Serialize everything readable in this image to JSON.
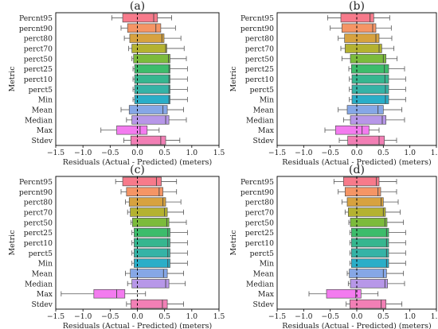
{
  "figure": {
    "xlabel": "Residuals (Actual - Predicted) (meters)",
    "ylabel": "Metric"
  },
  "chart_data": [
    {
      "type": "box",
      "panel_label": "(a)",
      "xlabel": "Residuals (Actual - Predicted) (meters)",
      "ylabel": "Metric",
      "xlim": [
        -1.5,
        1.5
      ],
      "xticks": [
        -1.5,
        -1.0,
        -0.5,
        0.0,
        0.5,
        1.0,
        1.5
      ],
      "xtick_labels": [
        "−1.5",
        "−1.0",
        "−0.5",
        "0.0",
        "0.5",
        "1.0",
        "1.5"
      ],
      "zero_line": 0,
      "categories": [
        "Percnt95",
        "percnt90",
        "perct80",
        "perct70",
        "perct50",
        "perct25",
        "perct10",
        "perct5",
        "Min",
        "Mean",
        "Median",
        "Max",
        "Stdev"
      ],
      "boxes": [
        {
          "color": "#f77a8b",
          "whisker_low": -0.47,
          "q1": -0.27,
          "median": 0.3,
          "q3": 0.37,
          "whisker_high": 0.63
        },
        {
          "color": "#f59565",
          "whisker_low": -0.3,
          "q1": -0.18,
          "median": 0.34,
          "q3": 0.43,
          "whisker_high": 0.7
        },
        {
          "color": "#d7a23f",
          "whisker_low": -0.24,
          "q1": -0.14,
          "median": 0.45,
          "q3": 0.49,
          "whisker_high": 0.8
        },
        {
          "color": "#b4b231",
          "whisker_low": -0.16,
          "q1": -0.1,
          "median": 0.52,
          "q3": 0.54,
          "whisker_high": 0.86
        },
        {
          "color": "#7cbb3c",
          "whisker_low": -0.1,
          "q1": -0.07,
          "median": 0.57,
          "q3": 0.6,
          "whisker_high": 0.9
        },
        {
          "color": "#3dbc6b",
          "whisker_low": -0.08,
          "q1": -0.05,
          "median": 0.58,
          "q3": 0.6,
          "whisker_high": 0.92
        },
        {
          "color": "#36b68f",
          "whisker_low": -0.08,
          "q1": -0.05,
          "median": 0.58,
          "q3": 0.6,
          "whisker_high": 0.92
        },
        {
          "color": "#35b3a6",
          "whisker_low": -0.08,
          "q1": -0.05,
          "median": 0.58,
          "q3": 0.6,
          "whisker_high": 0.92
        },
        {
          "color": "#2aaec8",
          "whisker_low": -0.08,
          "q1": -0.05,
          "median": 0.58,
          "q3": 0.6,
          "whisker_high": 0.92
        },
        {
          "color": "#86a7e6",
          "whisker_low": -0.3,
          "q1": -0.15,
          "median": 0.47,
          "q3": 0.55,
          "whisker_high": 0.85
        },
        {
          "color": "#b797e8",
          "whisker_low": -0.2,
          "q1": -0.1,
          "median": 0.52,
          "q3": 0.58,
          "whisker_high": 0.9
        },
        {
          "color": "#f37bef",
          "whisker_low": -0.67,
          "q1": -0.38,
          "median": 0.05,
          "q3": 0.18,
          "whisker_high": 0.4
        },
        {
          "color": "#f27fb5",
          "whisker_low": -0.25,
          "q1": -0.12,
          "median": 0.43,
          "q3": 0.52,
          "whisker_high": 0.78
        }
      ]
    },
    {
      "type": "box",
      "panel_label": "(b)",
      "xlabel": "Residuals (Actual - Predicted) (meters)",
      "ylabel": "Metric",
      "xlim": [
        -1.5,
        1.5
      ],
      "xticks": [
        -1.5,
        -1.0,
        -0.5,
        0.0,
        0.5,
        1.0,
        1.5
      ],
      "xtick_labels": [
        "−1.5",
        "−1.0",
        "−0.5",
        "0.0",
        "0.5",
        "1.0",
        "1.5"
      ],
      "zero_line": 0,
      "categories": [
        "Percnt95",
        "percnt90",
        "perct80",
        "perct70",
        "perct50",
        "perct25",
        "perct10",
        "perct5",
        "Min",
        "Mean",
        "Median",
        "Max",
        "Stdev"
      ],
      "boxes": [
        {
          "color": "#f77a8b",
          "whisker_low": -0.55,
          "q1": -0.3,
          "median": 0.25,
          "q3": 0.32,
          "whisker_high": 0.62
        },
        {
          "color": "#f59565",
          "whisker_low": -0.5,
          "q1": -0.28,
          "median": 0.3,
          "q3": 0.36,
          "whisker_high": 0.65
        },
        {
          "color": "#d7a23f",
          "whisker_low": -0.35,
          "q1": -0.23,
          "median": 0.36,
          "q3": 0.42,
          "whisker_high": 0.66
        },
        {
          "color": "#b4b231",
          "whisker_low": -0.3,
          "q1": -0.22,
          "median": 0.42,
          "q3": 0.47,
          "whisker_high": 0.7
        },
        {
          "color": "#7cbb3c",
          "whisker_low": -0.28,
          "q1": -0.12,
          "median": 0.5,
          "q3": 0.55,
          "whisker_high": 0.76
        },
        {
          "color": "#3dbc6b",
          "whisker_low": -0.15,
          "q1": -0.1,
          "median": 0.52,
          "q3": 0.6,
          "whisker_high": 0.9
        },
        {
          "color": "#36b68f",
          "whisker_low": -0.14,
          "q1": -0.09,
          "median": 0.53,
          "q3": 0.6,
          "whisker_high": 0.92
        },
        {
          "color": "#35b3a6",
          "whisker_low": -0.14,
          "q1": -0.09,
          "median": 0.54,
          "q3": 0.6,
          "whisker_high": 0.92
        },
        {
          "color": "#2aaec8",
          "whisker_low": -0.14,
          "q1": -0.09,
          "median": 0.54,
          "q3": 0.6,
          "whisker_high": 0.92
        },
        {
          "color": "#86a7e6",
          "whisker_low": -0.35,
          "q1": -0.18,
          "median": 0.4,
          "q3": 0.5,
          "whisker_high": 0.85
        },
        {
          "color": "#b797e8",
          "whisker_low": -0.25,
          "q1": -0.12,
          "median": 0.48,
          "q3": 0.55,
          "whisker_high": 0.9
        },
        {
          "color": "#f37bef",
          "whisker_low": -0.6,
          "q1": -0.4,
          "median": 0.1,
          "q3": 0.23,
          "whisker_high": 0.42
        },
        {
          "color": "#f27fb5",
          "whisker_low": -0.33,
          "q1": -0.17,
          "median": 0.42,
          "q3": 0.52,
          "whisker_high": 0.75
        }
      ]
    },
    {
      "type": "box",
      "panel_label": "(c)",
      "xlabel": "Residuals (Actual - Predicted) (meters)",
      "ylabel": "Metric",
      "xlim": [
        -1.5,
        1.5
      ],
      "xticks": [
        -1.5,
        -1.0,
        -0.5,
        0.0,
        0.5,
        1.0,
        1.5
      ],
      "xtick_labels": [
        "−1.5",
        "−1.0",
        "−0.5",
        "0.0",
        "0.5",
        "1.0",
        "1.5"
      ],
      "zero_line": 0,
      "categories": [
        "Percnt95",
        "percnt90",
        "perct80",
        "perct70",
        "perct50",
        "perct25",
        "perct10",
        "perct5",
        "Min",
        "Mean",
        "Median",
        "Max",
        "Stdev"
      ],
      "boxes": [
        {
          "color": "#f77a8b",
          "whisker_low": -0.4,
          "q1": -0.27,
          "median": 0.35,
          "q3": 0.44,
          "whisker_high": 0.72
        },
        {
          "color": "#f59565",
          "whisker_low": -0.3,
          "q1": -0.2,
          "median": 0.4,
          "q3": 0.47,
          "whisker_high": 0.72
        },
        {
          "color": "#d7a23f",
          "whisker_low": -0.22,
          "q1": -0.15,
          "median": 0.47,
          "q3": 0.52,
          "whisker_high": 0.8
        },
        {
          "color": "#b4b231",
          "whisker_low": -0.18,
          "q1": -0.13,
          "median": 0.5,
          "q3": 0.55,
          "whisker_high": 0.85
        },
        {
          "color": "#7cbb3c",
          "whisker_low": -0.12,
          "q1": -0.09,
          "median": 0.54,
          "q3": 0.58,
          "whisker_high": 0.9
        },
        {
          "color": "#3dbc6b",
          "whisker_low": -0.1,
          "q1": -0.06,
          "median": 0.56,
          "q3": 0.6,
          "whisker_high": 0.92
        },
        {
          "color": "#36b68f",
          "whisker_low": -0.1,
          "q1": -0.06,
          "median": 0.56,
          "q3": 0.6,
          "whisker_high": 0.92
        },
        {
          "color": "#35b3a6",
          "whisker_low": -0.1,
          "q1": -0.06,
          "median": 0.56,
          "q3": 0.6,
          "whisker_high": 0.92
        },
        {
          "color": "#2aaec8",
          "whisker_low": -0.1,
          "q1": -0.06,
          "median": 0.56,
          "q3": 0.6,
          "whisker_high": 0.92
        },
        {
          "color": "#86a7e6",
          "whisker_low": -0.22,
          "q1": -0.13,
          "median": 0.48,
          "q3": 0.55,
          "whisker_high": 0.85
        },
        {
          "color": "#b797e8",
          "whisker_low": -0.18,
          "q1": -0.1,
          "median": 0.52,
          "q3": 0.58,
          "whisker_high": 0.88
        },
        {
          "color": "#f37bef",
          "whisker_low": -1.4,
          "q1": -0.8,
          "median": -0.38,
          "q3": -0.23,
          "whisker_high": 0.15
        },
        {
          "color": "#f27fb5",
          "whisker_low": -0.2,
          "q1": -0.12,
          "median": 0.46,
          "q3": 0.55,
          "whisker_high": 0.85
        }
      ]
    },
    {
      "type": "box",
      "panel_label": "(d)",
      "xlabel": "Residuals (Actual - Predicted) (meters)",
      "ylabel": "Metric",
      "xlim": [
        -1.5,
        1.5
      ],
      "xticks": [
        -1.5,
        -1.0,
        -0.5,
        0.0,
        0.5,
        1.0,
        1.5
      ],
      "xtick_labels": [
        "−1.5",
        "−1.0",
        "−0.5",
        "0.0",
        "0.5",
        "1.0",
        "1.5"
      ],
      "zero_line": 0,
      "categories": [
        "Percnt95",
        "percnt90",
        "perct80",
        "perct70",
        "perct50",
        "perct25",
        "perct10",
        "perct5",
        "Min",
        "Mean",
        "Median",
        "Max",
        "Stdev"
      ],
      "boxes": [
        {
          "color": "#f77a8b",
          "whisker_low": -0.43,
          "q1": -0.25,
          "median": 0.37,
          "q3": 0.42,
          "whisker_high": 0.75
        },
        {
          "color": "#f59565",
          "whisker_low": -0.35,
          "q1": -0.22,
          "median": 0.4,
          "q3": 0.45,
          "whisker_high": 0.75
        },
        {
          "color": "#d7a23f",
          "whisker_low": -0.28,
          "q1": -0.18,
          "median": 0.46,
          "q3": 0.5,
          "whisker_high": 0.78
        },
        {
          "color": "#b4b231",
          "whisker_low": -0.22,
          "q1": -0.16,
          "median": 0.5,
          "q3": 0.54,
          "whisker_high": 0.82
        },
        {
          "color": "#7cbb3c",
          "whisker_low": -0.15,
          "q1": -0.12,
          "median": 0.53,
          "q3": 0.57,
          "whisker_high": 0.88
        },
        {
          "color": "#3dbc6b",
          "whisker_low": -0.13,
          "q1": -0.1,
          "median": 0.56,
          "q3": 0.6,
          "whisker_high": 0.92
        },
        {
          "color": "#36b68f",
          "whisker_low": -0.13,
          "q1": -0.1,
          "median": 0.56,
          "q3": 0.6,
          "whisker_high": 0.92
        },
        {
          "color": "#35b3a6",
          "whisker_low": -0.13,
          "q1": -0.1,
          "median": 0.56,
          "q3": 0.6,
          "whisker_high": 0.92
        },
        {
          "color": "#2aaec8",
          "whisker_low": -0.13,
          "q1": -0.1,
          "median": 0.56,
          "q3": 0.6,
          "whisker_high": 0.92
        },
        {
          "color": "#86a7e6",
          "whisker_low": -0.18,
          "q1": -0.14,
          "median": 0.5,
          "q3": 0.56,
          "whisker_high": 0.88
        },
        {
          "color": "#b797e8",
          "whisker_low": -0.16,
          "q1": -0.12,
          "median": 0.53,
          "q3": 0.58,
          "whisker_high": 0.9
        },
        {
          "color": "#f37bef",
          "whisker_low": -0.9,
          "q1": -0.57,
          "median": -0.02,
          "q3": 0.08,
          "whisker_high": 0.4
        },
        {
          "color": "#f27fb5",
          "whisker_low": -0.2,
          "q1": -0.13,
          "median": 0.46,
          "q3": 0.55,
          "whisker_high": 0.85
        }
      ]
    }
  ]
}
